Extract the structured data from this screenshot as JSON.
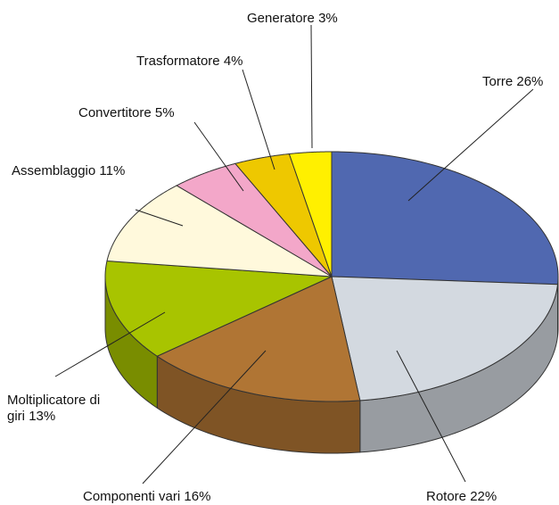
{
  "chart_data": {
    "type": "pie",
    "categories": [
      "Torre",
      "Rotore",
      "Componenti vari",
      "Moltiplicatore di giri",
      "Assemblaggio",
      "Convertitore",
      "Trasformatore",
      "Generatore"
    ],
    "values": [
      26,
      22,
      16,
      13,
      11,
      5,
      4,
      3
    ],
    "value_labels": [
      "26%",
      "22%",
      "16%",
      "13%",
      "11%",
      "5%",
      "4%",
      "3%"
    ],
    "colors": [
      "#5068b0",
      "#d3d9e0",
      "#b07534",
      "#a8c400",
      "#fff9dc",
      "#f3a7c9",
      "#eec800",
      "#fff000"
    ]
  }
}
